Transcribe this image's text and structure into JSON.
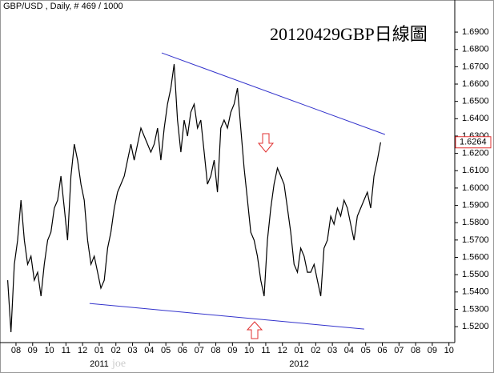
{
  "chart_data": {
    "type": "line",
    "title": "GBP/USD , Daily, # 469 / 1000",
    "annotation": "20120429GBP日線圖",
    "watermark": "joe",
    "x": [
      -0.5,
      -0.3,
      -0.1,
      0.1,
      0.3,
      0.5,
      0.7,
      0.9,
      1.1,
      1.3,
      1.5,
      1.7,
      1.9,
      2.1,
      2.3,
      2.5,
      2.7,
      2.9,
      3.1,
      3.3,
      3.5,
      3.7,
      3.9,
      4.1,
      4.3,
      4.5,
      4.7,
      4.9,
      5.1,
      5.3,
      5.5,
      5.7,
      5.9,
      6.1,
      6.3,
      6.5,
      6.7,
      6.9,
      7.1,
      7.3,
      7.5,
      7.7,
      7.9,
      8.1,
      8.3,
      8.5,
      8.7,
      8.9,
      9.1,
      9.3,
      9.5,
      9.7,
      9.9,
      10.1,
      10.3,
      10.5,
      10.7,
      10.9,
      11.1,
      11.3,
      11.5,
      11.7,
      11.9,
      12.1,
      12.3,
      12.5,
      12.7,
      12.9,
      13.1,
      13.3,
      13.5,
      13.7,
      13.9,
      14.1,
      14.3,
      14.5,
      14.7,
      14.9,
      15.1,
      15.3,
      15.5,
      15.7,
      15.9,
      16.1,
      16.3,
      16.5,
      16.7,
      16.9,
      17.1,
      17.3,
      17.5,
      17.7,
      17.9,
      18.1,
      18.3,
      18.5,
      18.7,
      18.9,
      19.1,
      19.3,
      19.5,
      19.7,
      19.9,
      20.1,
      20.3,
      20.5,
      20.7,
      20.9,
      21.1,
      21.3,
      21.5,
      21.7,
      21.9
    ],
    "series": [
      {
        "name": "GBP/USD",
        "color": "#000000",
        "values": [
          1.5468,
          1.5168,
          1.556,
          1.5699,
          1.593,
          1.5699,
          1.556,
          1.5607,
          1.5468,
          1.5514,
          1.5376,
          1.556,
          1.5699,
          1.5745,
          1.5884,
          1.593,
          1.6069,
          1.5884,
          1.5699,
          1.6069,
          1.6253,
          1.6161,
          1.6022,
          1.593,
          1.5699,
          1.556,
          1.5607,
          1.5514,
          1.5422,
          1.5468,
          1.5653,
          1.5745,
          1.5884,
          1.5976,
          1.6022,
          1.6069,
          1.6161,
          1.6253,
          1.6161,
          1.6253,
          1.6346,
          1.63,
          1.6253,
          1.6207,
          1.6253,
          1.6346,
          1.6161,
          1.6346,
          1.6484,
          1.6577,
          1.6715,
          1.6392,
          1.6207,
          1.6392,
          1.63,
          1.6438,
          1.6484,
          1.6346,
          1.6392,
          1.6207,
          1.6022,
          1.6069,
          1.6161,
          1.5976,
          1.6346,
          1.6392,
          1.6346,
          1.6438,
          1.6484,
          1.6577,
          1.6346,
          1.6115,
          1.593,
          1.5745,
          1.5699,
          1.5607,
          1.5468,
          1.5376,
          1.5699,
          1.5884,
          1.6022,
          1.6115,
          1.6069,
          1.6022,
          1.5884,
          1.5745,
          1.556,
          1.5514,
          1.5653,
          1.5607,
          1.5514,
          1.5514,
          1.556,
          1.5468,
          1.5376,
          1.5653,
          1.5699,
          1.5838,
          1.5791,
          1.5884,
          1.5838,
          1.593,
          1.5884,
          1.5791,
          1.5699,
          1.5838,
          1.5884,
          1.593,
          1.5976,
          1.5884,
          1.6069,
          1.6161,
          1.6264
        ]
      }
    ],
    "last_price": {
      "value": 1.6264,
      "label": "1.6264"
    },
    "trendlines": [
      {
        "color": "#3333cc",
        "x": [
          8.75,
          22.16
        ],
        "y": [
          1.678,
          1.6309
        ]
      },
      {
        "color": "#3333cc",
        "x": [
          4.42,
          20.91
        ],
        "y": [
          1.5334,
          1.5186
        ]
      }
    ],
    "xlim": [
      -0.96,
      26.35
    ],
    "ylim": [
      1.5108,
      1.7002
    ],
    "xticks": [
      {
        "value": 0,
        "label": "08"
      },
      {
        "value": 1,
        "label": "09"
      },
      {
        "value": 2,
        "label": "10"
      },
      {
        "value": 3,
        "label": "11"
      },
      {
        "value": 4,
        "label": "12"
      },
      {
        "value": 5,
        "label": "01"
      },
      {
        "value": 6,
        "label": "02"
      },
      {
        "value": 7,
        "label": "03"
      },
      {
        "value": 8,
        "label": "04"
      },
      {
        "value": 9,
        "label": "05"
      },
      {
        "value": 10,
        "label": "06"
      },
      {
        "value": 11,
        "label": "07"
      },
      {
        "value": 12,
        "label": "08"
      },
      {
        "value": 13,
        "label": "09"
      },
      {
        "value": 14,
        "label": "10"
      },
      {
        "value": 15,
        "label": "11"
      },
      {
        "value": 16,
        "label": "12"
      },
      {
        "value": 17,
        "label": "01"
      },
      {
        "value": 18,
        "label": "02"
      },
      {
        "value": 19,
        "label": "03"
      },
      {
        "value": 20,
        "label": "04"
      },
      {
        "value": 21,
        "label": "05"
      },
      {
        "value": 22,
        "label": "06"
      },
      {
        "value": 23,
        "label": "07"
      },
      {
        "value": 24,
        "label": "08"
      },
      {
        "value": 25,
        "label": "09"
      },
      {
        "value": 26,
        "label": "10"
      }
    ],
    "year_labels": [
      {
        "value": 5,
        "label": "2011"
      },
      {
        "value": 17,
        "label": "2012"
      }
    ],
    "yticks": [
      {
        "value": 1.52,
        "label": "1.5200"
      },
      {
        "value": 1.53,
        "label": "1.5300"
      },
      {
        "value": 1.54,
        "label": "1.5400"
      },
      {
        "value": 1.55,
        "label": "1.5500"
      },
      {
        "value": 1.56,
        "label": "1.5600"
      },
      {
        "value": 1.57,
        "label": "1.5700"
      },
      {
        "value": 1.58,
        "label": "1.5800"
      },
      {
        "value": 1.59,
        "label": "1.5900"
      },
      {
        "value": 1.6,
        "label": "1.6000"
      },
      {
        "value": 1.61,
        "label": "1.6100"
      },
      {
        "value": 1.62,
        "label": "1.6200"
      },
      {
        "value": 1.63,
        "label": "1.6300"
      },
      {
        "value": 1.64,
        "label": "1.6400"
      },
      {
        "value": 1.65,
        "label": "1.6500"
      },
      {
        "value": 1.66,
        "label": "1.6600"
      },
      {
        "value": 1.67,
        "label": "1.6700"
      },
      {
        "value": 1.68,
        "label": "1.6800"
      },
      {
        "value": 1.69,
        "label": "1.6900"
      }
    ]
  }
}
